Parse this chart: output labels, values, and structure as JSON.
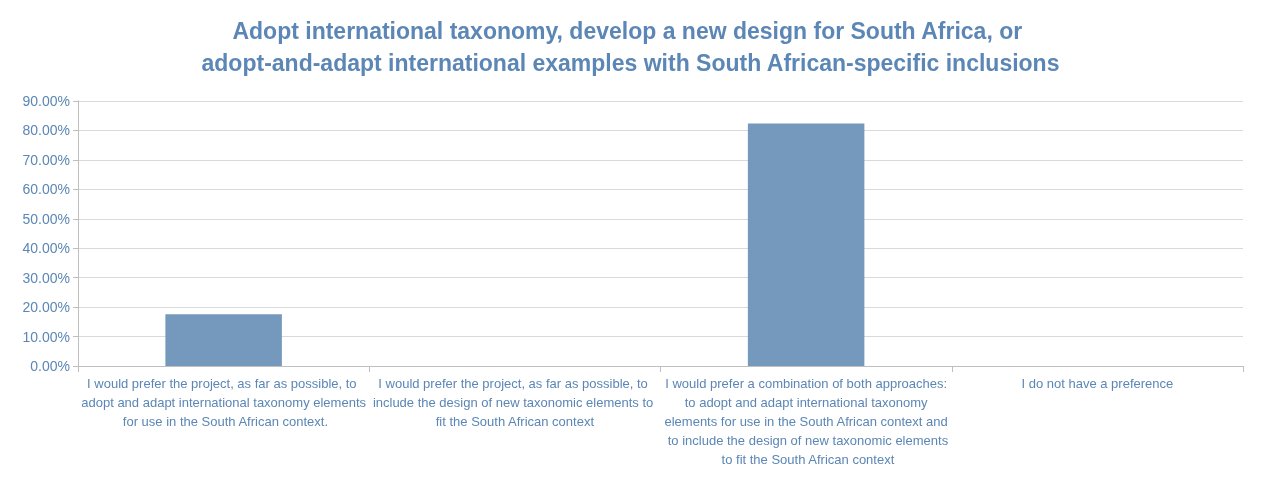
{
  "chart_data": {
    "type": "bar",
    "title": "Adopt international taxonomy, develop a new design for South Africa, or adopt-and-adapt international examples with South African-specific inclusions",
    "categories": [
      "I would prefer the project, as far as possible, to adopt and adapt international taxonomy elements for use in the South African context.",
      "I would prefer the project, as far as possible, to include the design of new taxonomic elements to fit the South African context",
      "I would prefer a combination of both approaches: to adopt and adapt international taxonomy elements for use in the South African context and to include the design of new taxonomic elements to fit the South African context",
      "I do not have a preference"
    ],
    "values": [
      17.6,
      0,
      82.4,
      0
    ],
    "color": "#7599bd",
    "ylim": [
      0,
      90
    ],
    "yticks": [
      {
        "value": 0,
        "label": "0.00%"
      },
      {
        "value": 10,
        "label": "10.00%"
      },
      {
        "value": 20,
        "label": "20.00%"
      },
      {
        "value": 30,
        "label": "30.00%"
      },
      {
        "value": 40,
        "label": "40.00%"
      },
      {
        "value": 50,
        "label": "50.00%"
      },
      {
        "value": 60,
        "label": "60.00%"
      },
      {
        "value": 70,
        "label": "70.00%"
      },
      {
        "value": 80,
        "label": "80.00%"
      },
      {
        "value": 90,
        "label": "90.00%"
      }
    ],
    "grid": "y"
  }
}
